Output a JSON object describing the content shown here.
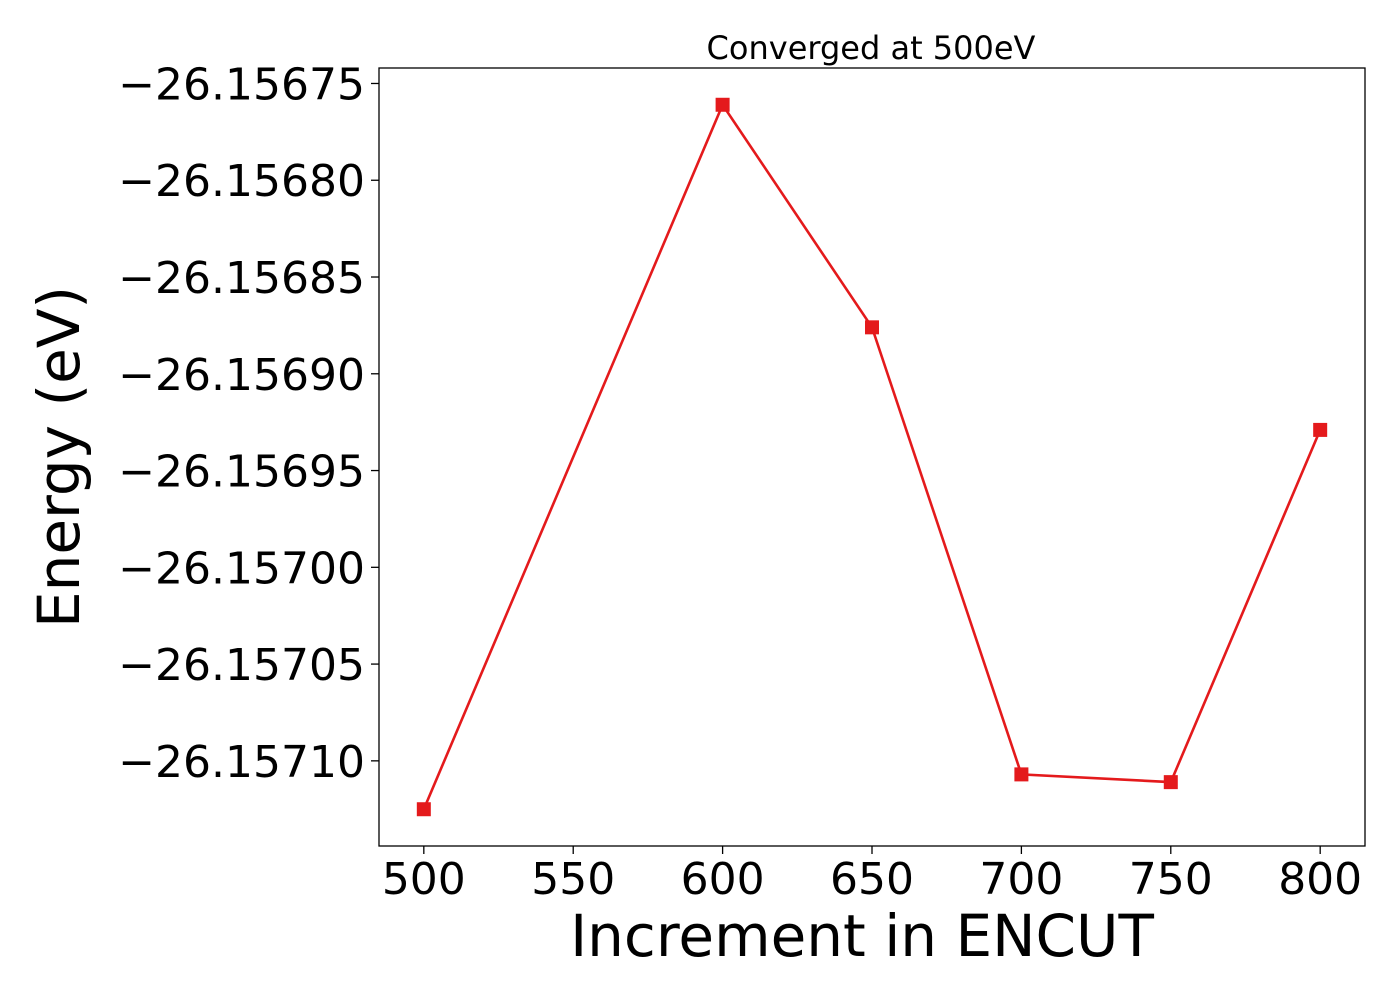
{
  "chart_data": {
    "type": "line",
    "title": "Converged at 500eV",
    "xlabel": "Increment in ENCUT",
    "ylabel": "Energy (eV)",
    "x": [
      500,
      600,
      650,
      700,
      750,
      800
    ],
    "series": [
      {
        "values": [
          -26.157125,
          -26.156761,
          -26.156876,
          -26.157107,
          -26.157111,
          -26.156929
        ],
        "color": "#e41a1c",
        "marker": "square"
      }
    ],
    "xlim": [
      485,
      815
    ],
    "ylim": [
      -26.157144,
      -26.156742
    ],
    "xticks": [
      500,
      550,
      600,
      650,
      700,
      750,
      800
    ],
    "xtick_labels": [
      "500",
      "550",
      "600",
      "650",
      "700",
      "750",
      "800"
    ],
    "yticks": [
      -26.15675,
      -26.1568,
      -26.15685,
      -26.1569,
      -26.15695,
      -26.157,
      -26.15705,
      -26.1571
    ],
    "ytick_labels": [
      "−26.15675",
      "−26.15680",
      "−26.15685",
      "−26.15690",
      "−26.15695",
      "−26.15700",
      "−26.15705",
      "−26.15710"
    ],
    "grid": false,
    "legend": "none"
  }
}
